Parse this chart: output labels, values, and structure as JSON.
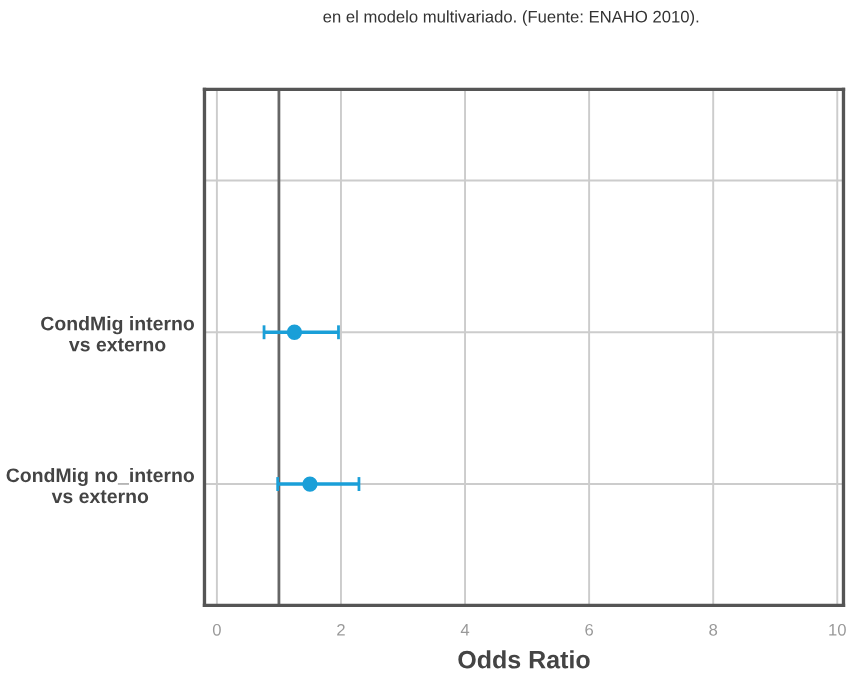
{
  "chart_data": {
    "type": "scatter",
    "orientation": "horizontal",
    "title": "en el modelo multivariado. (Fuente: ENAHO 2010).",
    "xlabel": "Odds Ratio",
    "categories": [
      null,
      "CondMig interno\nvs externo",
      "CondMig no_interno\nvs externo"
    ],
    "series": [
      {
        "color": "#1a9fd8",
        "values": [
          null,
          1.25,
          1.5
        ],
        "errors": [
          null,
          [
            0.76,
            1.96
          ],
          [
            0.98,
            2.29
          ]
        ]
      }
    ],
    "xlim": [
      -0.2,
      10.1
    ],
    "xticks": [
      0,
      2,
      4,
      6,
      8,
      10
    ],
    "ref_lines": [
      {
        "axis": "x",
        "value": 1,
        "color": "#666666"
      }
    ],
    "grid": true,
    "marker": "circle"
  }
}
